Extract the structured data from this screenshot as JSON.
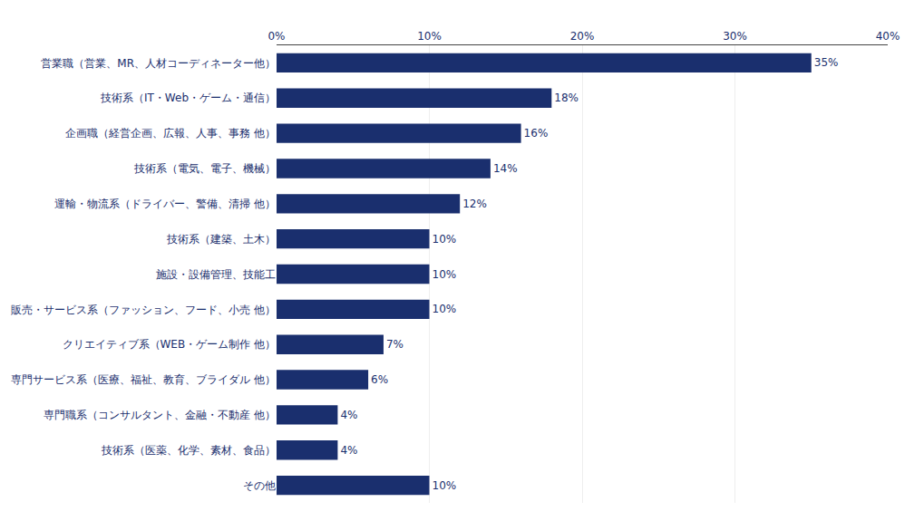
{
  "chart_data": {
    "type": "bar",
    "orientation": "horizontal",
    "categories": [
      "その他",
      "技術系（医薬、化学、素材、食品）",
      "専門職系（コンサルタント、金融・不動産 他）",
      "専門サービス系（医療、福祉、教育、ブライダル 他）",
      "クリエイティブ系（WEB・ゲーム制作 他）",
      "販売・サービス系（ファッション、フード、小売 他）",
      "施設・設備管理、技能工",
      "技術系（建築、土木）",
      "運輸・物流系（ドライバー、警備、清掃 他）",
      "技術系（電気、電子、機械）",
      "企画職（経営企画、広報、人事、事務 他）",
      "技術系（IT・Web・ゲーム・通信）",
      "営業職（営業、MR、人材コーディネーター他）"
    ],
    "values": [
      10,
      4,
      4,
      6,
      7,
      10,
      10,
      10,
      12,
      14,
      16,
      18,
      35
    ],
    "value_labels": [
      "10%",
      "4%",
      "4%",
      "6%",
      "7%",
      "10%",
      "10%",
      "10%",
      "12%",
      "14%",
      "16%",
      "18%",
      "35%"
    ],
    "color": "#1a2f6e",
    "xlim": [
      0,
      40
    ],
    "xticks": [
      {
        "value": 0,
        "label": "0%"
      },
      {
        "value": 10,
        "label": "10%"
      },
      {
        "value": 20,
        "label": "20%"
      },
      {
        "value": 30,
        "label": "30%"
      },
      {
        "value": 40,
        "label": "40%"
      }
    ],
    "grid": true,
    "data_labels": true
  }
}
